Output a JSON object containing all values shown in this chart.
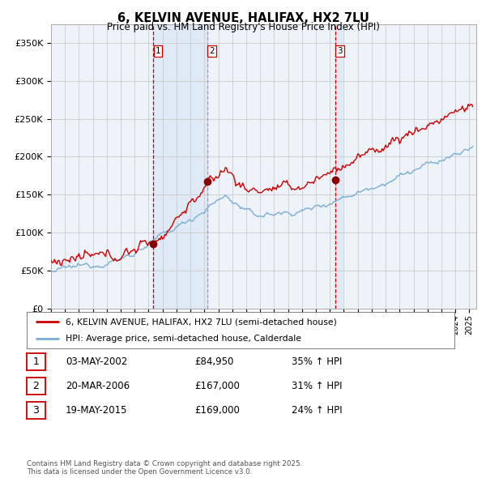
{
  "title_line1": "6, KELVIN AVENUE, HALIFAX, HX2 7LU",
  "title_line2": "Price paid vs. HM Land Registry's House Price Index (HPI)",
  "ylim": [
    0,
    375000
  ],
  "yticks": [
    0,
    50000,
    100000,
    150000,
    200000,
    250000,
    300000,
    350000
  ],
  "ytick_labels": [
    "£0",
    "£50K",
    "£100K",
    "£150K",
    "£200K",
    "£250K",
    "£300K",
    "£350K"
  ],
  "background_color": "#ffffff",
  "plot_bg_color": "#eef3fa",
  "grid_color": "#cccccc",
  "red_line_color": "#cc0000",
  "blue_line_color": "#7aaed6",
  "vline_color": "#cc0000",
  "vline2_color": "#aaaacc",
  "shade_color": "#dde8f5",
  "transaction_years": [
    2002.33,
    2006.21,
    2015.38
  ],
  "transaction_prices": [
    84950,
    167000,
    169000
  ],
  "legend_red_label": "6, KELVIN AVENUE, HALIFAX, HX2 7LU (semi-detached house)",
  "legend_blue_label": "HPI: Average price, semi-detached house, Calderdale",
  "table_rows": [
    {
      "num": "1",
      "date": "03-MAY-2002",
      "price": "£84,950",
      "change": "35% ↑ HPI"
    },
    {
      "num": "2",
      "date": "20-MAR-2006",
      "price": "£167,000",
      "change": "31% ↑ HPI"
    },
    {
      "num": "3",
      "date": "19-MAY-2015",
      "price": "£169,000",
      "change": "24% ↑ HPI"
    }
  ],
  "footer_text": "Contains HM Land Registry data © Crown copyright and database right 2025.\nThis data is licensed under the Open Government Licence v3.0."
}
